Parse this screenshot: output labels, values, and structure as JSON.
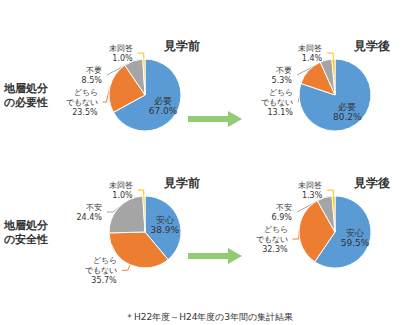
{
  "chart_data": [
    {
      "type": "pie",
      "title": "見学前",
      "categories": [
        "必要",
        "どちら\nでもない",
        "不要",
        "未回答"
      ],
      "values": [
        67.0,
        23.5,
        8.5,
        1.0
      ],
      "value_labels": [
        "67.0%",
        "23.5%",
        "8.5%",
        "1.0%"
      ],
      "colors": [
        "#5B9BD5",
        "#ED7D31",
        "#A5A5A5",
        "#FFC000"
      ]
    },
    {
      "type": "pie",
      "title": "見学後",
      "categories": [
        "必要",
        "どちら\nでもない",
        "不要",
        "未回答"
      ],
      "values": [
        80.2,
        13.1,
        5.3,
        1.4
      ],
      "value_labels": [
        "80.2%",
        "13.1%",
        "5.3%",
        "1.4%"
      ],
      "colors": [
        "#5B9BD5",
        "#ED7D31",
        "#A5A5A5",
        "#FFC000"
      ]
    },
    {
      "type": "pie",
      "title": "見学前",
      "categories": [
        "安心",
        "どちら\nでもない",
        "不安",
        "未回答"
      ],
      "values": [
        38.9,
        35.7,
        24.4,
        1.0
      ],
      "value_labels": [
        "38.9%",
        "35.7%",
        "24.4%",
        "1.0%"
      ],
      "colors": [
        "#5B9BD5",
        "#ED7D31",
        "#A5A5A5",
        "#FFC000"
      ]
    },
    {
      "type": "pie",
      "title": "見学後",
      "categories": [
        "安心",
        "どちら\nでもない",
        "不安",
        "未回答"
      ],
      "values": [
        59.5,
        32.3,
        6.9,
        1.3
      ],
      "value_labels": [
        "59.5%",
        "32.3%",
        "6.9%",
        "1.3%"
      ],
      "colors": [
        "#5B9BD5",
        "#ED7D31",
        "#A5A5A5",
        "#FFC000"
      ]
    }
  ],
  "annotations": [
    "地層処分\nの必要性",
    "地層処分\nの安全性",
    "＊H22年度～H24年度の3年間の集計結果"
  ]
}
